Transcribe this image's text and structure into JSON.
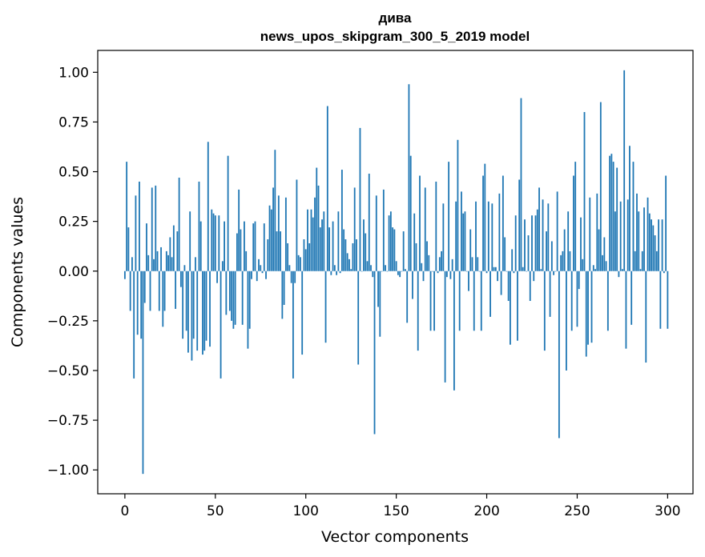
{
  "chart_data": {
    "type": "bar",
    "title": "дива",
    "subtitle": "news_upos_skipgram_300_5_2019 model",
    "xlabel": "Vector components",
    "ylabel": "Components values",
    "xlim": [
      -15,
      314
    ],
    "ylim": [
      -1.12,
      1.11
    ],
    "xticks": [
      0,
      50,
      100,
      150,
      200,
      250,
      300
    ],
    "yticks": [
      -1.0,
      -0.75,
      -0.5,
      -0.25,
      0.0,
      0.25,
      0.5,
      0.75,
      1.0
    ],
    "xtick_labels": [
      "0",
      "50",
      "100",
      "150",
      "200",
      "250",
      "300"
    ],
    "ytick_labels": [
      "−1.00",
      "−0.75",
      "−0.50",
      "−0.25",
      "0.00",
      "0.25",
      "0.50",
      "0.75",
      "1.00"
    ],
    "grid": false,
    "bar_color": "#1f77b4",
    "values": [
      -0.04,
      0.55,
      0.22,
      -0.2,
      0.07,
      -0.54,
      0.38,
      -0.32,
      0.45,
      -0.34,
      -1.02,
      -0.16,
      0.24,
      0.08,
      -0.2,
      0.42,
      0.06,
      0.43,
      0.1,
      -0.2,
      0.12,
      -0.28,
      -0.2,
      0.1,
      0.08,
      0.17,
      0.07,
      0.23,
      -0.19,
      0.2,
      0.47,
      -0.08,
      -0.34,
      0.03,
      -0.3,
      -0.41,
      0.3,
      -0.45,
      -0.34,
      0.07,
      -0.4,
      0.45,
      0.25,
      -0.42,
      -0.4,
      -0.35,
      0.65,
      -0.38,
      0.31,
      0.29,
      0.28,
      -0.06,
      0.28,
      -0.54,
      0.05,
      0.25,
      -0.22,
      0.58,
      -0.2,
      -0.25,
      -0.29,
      -0.27,
      0.19,
      0.41,
      0.21,
      -0.27,
      0.25,
      0.1,
      -0.39,
      -0.29,
      -0.04,
      0.24,
      0.25,
      -0.05,
      0.06,
      0.03,
      -0.01,
      0.24,
      -0.04,
      0.16,
      0.33,
      0.31,
      0.42,
      0.61,
      0.2,
      0.38,
      0.2,
      -0.24,
      -0.17,
      0.37,
      0.14,
      0.03,
      -0.06,
      -0.54,
      -0.06,
      0.46,
      0.08,
      0.07,
      -0.42,
      0.16,
      0.11,
      0.31,
      0.14,
      0.31,
      0.27,
      0.37,
      0.52,
      0.43,
      0.22,
      0.26,
      0.3,
      -0.36,
      0.83,
      0.22,
      -0.02,
      0.25,
      0.03,
      -0.02,
      0.3,
      -0.01,
      0.51,
      0.21,
      0.16,
      0.09,
      0.06,
      0.01,
      0.14,
      0.42,
      0.16,
      -0.47,
      0.72,
      0.0,
      0.26,
      0.19,
      0.05,
      0.49,
      0.03,
      -0.03,
      -0.82,
      0.38,
      -0.18,
      -0.33,
      0.0,
      0.41,
      0.03,
      0.0,
      0.28,
      0.3,
      0.22,
      0.21,
      0.05,
      -0.02,
      -0.03,
      0.0,
      0.2,
      0.01,
      -0.26,
      0.94,
      0.58,
      -0.14,
      0.29,
      0.14,
      -0.4,
      0.48,
      0.04,
      -0.05,
      0.42,
      0.15,
      0.08,
      -0.3,
      0.0,
      -0.3,
      0.45,
      -0.01,
      0.07,
      0.1,
      0.34,
      -0.56,
      -0.03,
      0.55,
      -0.04,
      0.06,
      -0.6,
      0.35,
      0.66,
      -0.3,
      0.4,
      0.29,
      0.3,
      0.0,
      -0.1,
      0.21,
      0.07,
      -0.3,
      0.35,
      0.07,
      0.0,
      -0.3,
      0.48,
      0.54,
      -0.01,
      0.35,
      -0.23,
      0.34,
      0.02,
      0.02,
      -0.05,
      0.39,
      -0.12,
      0.48,
      0.17,
      0.0,
      -0.15,
      -0.37,
      0.11,
      -0.01,
      0.28,
      -0.35,
      0.46,
      0.87,
      0.02,
      0.26,
      0.0,
      0.18,
      -0.15,
      0.28,
      -0.05,
      0.28,
      0.31,
      0.42,
      0.01,
      0.36,
      -0.4,
      0.2,
      0.34,
      -0.23,
      0.15,
      -0.02,
      0.0,
      0.4,
      -0.84,
      0.08,
      0.1,
      0.21,
      -0.5,
      0.3,
      0.1,
      -0.3,
      0.48,
      0.55,
      -0.28,
      -0.09,
      0.27,
      0.06,
      0.8,
      -0.43,
      -0.37,
      0.37,
      -0.36,
      0.03,
      0.01,
      0.39,
      0.21,
      0.85,
      0.08,
      0.17,
      0.05,
      -0.3,
      0.58,
      0.59,
      0.55,
      0.3,
      0.52,
      -0.03,
      0.35,
      0.01,
      1.01,
      -0.39,
      0.36,
      0.63,
      -0.27,
      0.55,
      0.1,
      0.39,
      0.3,
      0.01,
      0.1,
      0.32,
      -0.46,
      0.37,
      0.29,
      0.26,
      0.23,
      0.18,
      0.1,
      0.26,
      -0.29,
      0.26,
      -0.01,
      0.48,
      -0.29
    ]
  }
}
